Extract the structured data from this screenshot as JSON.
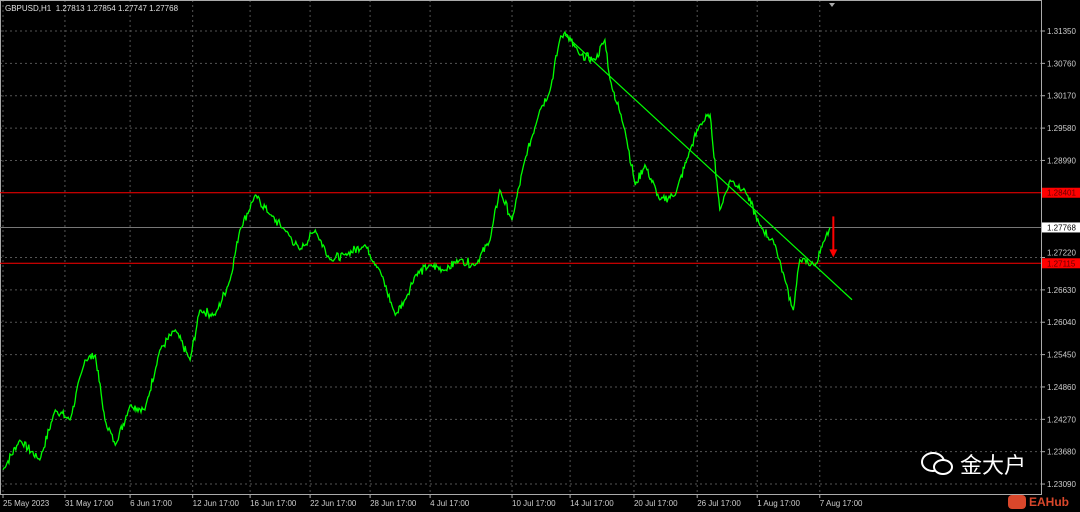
{
  "header": {
    "symbol": "GBPUSD,H1",
    "ohlc": "1.27813 1.27854 1.27747 1.27768"
  },
  "chart_data": {
    "type": "line",
    "symbol": "GBPUSD",
    "timeframe": "H1",
    "ylim": [
      1.228,
      1.3195
    ],
    "xlim": [
      0,
      1345
    ],
    "grid": true,
    "y_ticks": [
      "1.31350",
      "1.30760",
      "1.30170",
      "1.29580",
      "1.28990",
      "1.28401",
      "1.27768",
      "1.27220",
      "1.27115",
      "1.26630",
      "1.26040",
      "1.25450",
      "1.24860",
      "1.24270",
      "1.23680",
      "1.23090"
    ],
    "y_tick_values": [
      1.3135,
      1.3076,
      1.3017,
      1.2958,
      1.2899,
      1.2722,
      1.2663,
      1.2604,
      1.2545,
      1.2486,
      1.2427,
      1.2368,
      1.2309
    ],
    "x_ticks": [
      {
        "label": "25 May 2023",
        "bar": 0
      },
      {
        "label": "31 May 17:00",
        "bar": 96
      },
      {
        "label": "6 Jun 17:00",
        "bar": 197
      },
      {
        "label": "12 Jun 17:00",
        "bar": 294
      },
      {
        "label": "16 Jun 17:00",
        "bar": 383
      },
      {
        "label": "22 Jun 17:00",
        "bar": 476
      },
      {
        "label": "28 Jun 17:00",
        "bar": 569
      },
      {
        "label": "4 Jul 17:00",
        "bar": 662
      },
      {
        "label": "10 Jul 17:00",
        "bar": 789
      },
      {
        "label": "14 Jul 17:00",
        "bar": 879
      },
      {
        "label": "20 Jul 17:00",
        "bar": 978
      },
      {
        "label": "26 Jul 17:00",
        "bar": 1076
      },
      {
        "label": "1 Aug 17:00",
        "bar": 1169
      },
      {
        "label": "7 Aug 17:00",
        "bar": 1266
      }
    ],
    "series": [
      {
        "color": "#00ff00",
        "points": [
          [
            0,
            1.2335
          ],
          [
            26,
            1.2389
          ],
          [
            57,
            1.2353
          ],
          [
            81,
            1.2444
          ],
          [
            104,
            1.2426
          ],
          [
            127,
            1.2535
          ],
          [
            143,
            1.2544
          ],
          [
            158,
            1.2426
          ],
          [
            174,
            1.238
          ],
          [
            197,
            1.2453
          ],
          [
            220,
            1.2444
          ],
          [
            243,
            1.2553
          ],
          [
            267,
            1.259
          ],
          [
            290,
            1.2535
          ],
          [
            305,
            1.2626
          ],
          [
            329,
            1.2617
          ],
          [
            352,
            1.2681
          ],
          [
            367,
            1.2772
          ],
          [
            391,
            1.2836
          ],
          [
            414,
            1.28
          ],
          [
            437,
            1.2772
          ],
          [
            460,
            1.2736
          ],
          [
            484,
            1.2772
          ],
          [
            507,
            1.2718
          ],
          [
            530,
            1.2727
          ],
          [
            561,
            1.2745
          ],
          [
            584,
            1.2699
          ],
          [
            608,
            1.2617
          ],
          [
            623,
            1.2645
          ],
          [
            639,
            1.269
          ],
          [
            662,
            1.2708
          ],
          [
            685,
            1.2699
          ],
          [
            708,
            1.2718
          ],
          [
            732,
            1.2708
          ],
          [
            755,
            1.2754
          ],
          [
            770,
            1.2845
          ],
          [
            789,
            1.279
          ],
          [
            809,
            1.29
          ],
          [
            832,
            1.2991
          ],
          [
            848,
            1.3027
          ],
          [
            863,
            1.3119
          ],
          [
            871,
            1.3133
          ],
          [
            894,
            1.3091
          ],
          [
            918,
            1.3082
          ],
          [
            933,
            1.3119
          ],
          [
            941,
            1.3046
          ],
          [
            964,
            1.2955
          ],
          [
            980,
            1.2854
          ],
          [
            995,
            1.2891
          ],
          [
            1018,
            1.2827
          ],
          [
            1042,
            1.2836
          ],
          [
            1065,
            1.2918
          ],
          [
            1080,
            1.2964
          ],
          [
            1096,
            1.2982
          ],
          [
            1111,
            1.2809
          ],
          [
            1127,
            1.2863
          ],
          [
            1150,
            1.2845
          ],
          [
            1173,
            1.2781
          ],
          [
            1197,
            1.2745
          ],
          [
            1212,
            1.2681
          ],
          [
            1225,
            1.2626
          ],
          [
            1235,
            1.2718
          ],
          [
            1259,
            1.2708
          ],
          [
            1274,
            1.2754
          ],
          [
            1282,
            1.27768
          ]
        ]
      }
    ],
    "hlines": [
      {
        "price": 1.28401,
        "label": "1.28401",
        "color": "#ff0000"
      },
      {
        "price": 1.27115,
        "label": "1.27115",
        "color": "#ff0000"
      }
    ],
    "current_price": {
      "price": 1.27768,
      "label": "1.27768"
    },
    "trendline": {
      "from": [
        871,
        1.3128
      ],
      "to": [
        1316,
        1.2645
      ],
      "color": "#00ff00"
    },
    "arrow": {
      "bar": 1287,
      "from": 1.2797,
      "to": 1.2724,
      "color": "#ff0000",
      "direction": "down"
    }
  },
  "watermark": {
    "text": "金大户",
    "icon": "wechat-icon",
    "brand": "EAHub"
  }
}
